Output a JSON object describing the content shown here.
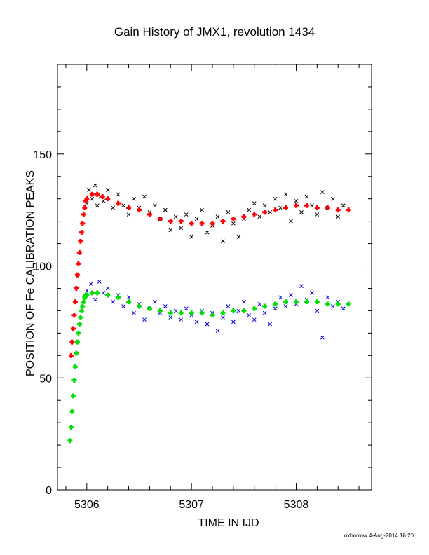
{
  "chart_data": {
    "type": "scatter",
    "title": "Gain History of JMX1, revolution 1434",
    "xlabel": "TIME IN IJD",
    "ylabel": "POSITION OF Fe CALIBRATION PEAKS",
    "xlim": [
      5305.72,
      5308.72
    ],
    "ylim": [
      0,
      190
    ],
    "xticks": [
      5306,
      5307,
      5308
    ],
    "yticks": [
      0,
      50,
      100,
      150
    ],
    "grid": false,
    "legend": "none",
    "series": [
      {
        "marker": "x",
        "color": "#000000",
        "points": [
          [
            5306.0,
            128
          ],
          [
            5306.02,
            134
          ],
          [
            5306.05,
            130
          ],
          [
            5306.08,
            136
          ],
          [
            5306.1,
            127
          ],
          [
            5306.13,
            131
          ],
          [
            5306.16,
            129
          ],
          [
            5306.2,
            134
          ],
          [
            5306.25,
            126
          ],
          [
            5306.3,
            132
          ],
          [
            5306.35,
            127
          ],
          [
            5306.4,
            123
          ],
          [
            5306.45,
            130
          ],
          [
            5306.5,
            126
          ],
          [
            5306.55,
            131
          ],
          [
            5306.6,
            124
          ],
          [
            5306.65,
            127
          ],
          [
            5306.7,
            121
          ],
          [
            5306.75,
            125
          ],
          [
            5306.8,
            116
          ],
          [
            5306.85,
            122
          ],
          [
            5306.9,
            117
          ],
          [
            5306.95,
            123
          ],
          [
            5307.0,
            113
          ],
          [
            5307.05,
            121
          ],
          [
            5307.1,
            125
          ],
          [
            5307.15,
            115
          ],
          [
            5307.2,
            118
          ],
          [
            5307.25,
            122
          ],
          [
            5307.3,
            111
          ],
          [
            5307.35,
            124
          ],
          [
            5307.4,
            119
          ],
          [
            5307.45,
            113
          ],
          [
            5307.5,
            121
          ],
          [
            5307.55,
            125
          ],
          [
            5307.6,
            128
          ],
          [
            5307.65,
            122
          ],
          [
            5307.7,
            127
          ],
          [
            5307.75,
            124
          ],
          [
            5307.8,
            130
          ],
          [
            5307.85,
            126
          ],
          [
            5307.9,
            132
          ],
          [
            5307.95,
            120
          ],
          [
            5308.0,
            129
          ],
          [
            5308.05,
            124
          ],
          [
            5308.1,
            131
          ],
          [
            5308.15,
            127
          ],
          [
            5308.2,
            123
          ],
          [
            5308.25,
            133
          ],
          [
            5308.3,
            126
          ],
          [
            5308.35,
            130
          ],
          [
            5308.4,
            122
          ],
          [
            5308.45,
            127
          ]
        ]
      },
      {
        "marker": "x",
        "color": "#0000e0",
        "points": [
          [
            5306.0,
            89
          ],
          [
            5306.04,
            92
          ],
          [
            5306.08,
            85
          ],
          [
            5306.12,
            93
          ],
          [
            5306.16,
            88
          ],
          [
            5306.2,
            90
          ],
          [
            5306.25,
            84
          ],
          [
            5306.3,
            87
          ],
          [
            5306.35,
            82
          ],
          [
            5306.4,
            86
          ],
          [
            5306.45,
            79
          ],
          [
            5306.5,
            83
          ],
          [
            5306.55,
            76
          ],
          [
            5306.6,
            81
          ],
          [
            5306.65,
            84
          ],
          [
            5306.7,
            79
          ],
          [
            5306.75,
            82
          ],
          [
            5306.8,
            77
          ],
          [
            5306.85,
            80
          ],
          [
            5306.9,
            76
          ],
          [
            5306.95,
            81
          ],
          [
            5307.0,
            78
          ],
          [
            5307.05,
            75
          ],
          [
            5307.1,
            80
          ],
          [
            5307.15,
            74
          ],
          [
            5307.2,
            79
          ],
          [
            5307.25,
            71
          ],
          [
            5307.3,
            77
          ],
          [
            5307.35,
            82
          ],
          [
            5307.4,
            75
          ],
          [
            5307.45,
            80
          ],
          [
            5307.5,
            84
          ],
          [
            5307.55,
            78
          ],
          [
            5307.6,
            76
          ],
          [
            5307.65,
            83
          ],
          [
            5307.7,
            79
          ],
          [
            5307.75,
            74
          ],
          [
            5307.8,
            81
          ],
          [
            5307.85,
            86
          ],
          [
            5307.9,
            82
          ],
          [
            5307.95,
            87
          ],
          [
            5308.0,
            83
          ],
          [
            5308.05,
            91
          ],
          [
            5308.1,
            85
          ],
          [
            5308.15,
            88
          ],
          [
            5308.2,
            80
          ],
          [
            5308.25,
            68
          ],
          [
            5308.3,
            86
          ],
          [
            5308.35,
            82
          ],
          [
            5308.4,
            84
          ],
          [
            5308.45,
            81
          ]
        ]
      },
      {
        "marker": "plus",
        "color": "#ff0000",
        "points": [
          [
            5305.85,
            60
          ],
          [
            5305.86,
            66
          ],
          [
            5305.87,
            72
          ],
          [
            5305.88,
            78
          ],
          [
            5305.89,
            84
          ],
          [
            5305.9,
            90
          ],
          [
            5305.91,
            96
          ],
          [
            5305.92,
            101
          ],
          [
            5305.93,
            106
          ],
          [
            5305.94,
            111
          ],
          [
            5305.95,
            115
          ],
          [
            5305.96,
            119
          ],
          [
            5305.97,
            123
          ],
          [
            5305.98,
            126
          ],
          [
            5305.99,
            129
          ],
          [
            5306.0,
            130
          ],
          [
            5306.05,
            132
          ],
          [
            5306.1,
            132
          ],
          [
            5306.15,
            131
          ],
          [
            5306.2,
            130
          ],
          [
            5306.3,
            128
          ],
          [
            5306.4,
            126
          ],
          [
            5306.5,
            125
          ],
          [
            5306.6,
            123
          ],
          [
            5306.7,
            121
          ],
          [
            5306.8,
            120
          ],
          [
            5306.9,
            120
          ],
          [
            5307.0,
            119
          ],
          [
            5307.1,
            119
          ],
          [
            5307.2,
            119
          ],
          [
            5307.3,
            120
          ],
          [
            5307.4,
            121
          ],
          [
            5307.5,
            122
          ],
          [
            5307.6,
            123
          ],
          [
            5307.7,
            124
          ],
          [
            5307.8,
            125
          ],
          [
            5307.9,
            126
          ],
          [
            5308.0,
            127
          ],
          [
            5308.1,
            127
          ],
          [
            5308.2,
            126
          ],
          [
            5308.3,
            126
          ],
          [
            5308.4,
            125
          ],
          [
            5308.5,
            125
          ]
        ]
      },
      {
        "marker": "plus",
        "color": "#00dd00",
        "points": [
          [
            5305.84,
            22
          ],
          [
            5305.85,
            28
          ],
          [
            5305.86,
            35
          ],
          [
            5305.87,
            42
          ],
          [
            5305.88,
            49
          ],
          [
            5305.89,
            55
          ],
          [
            5305.9,
            61
          ],
          [
            5305.91,
            66
          ],
          [
            5305.92,
            70
          ],
          [
            5305.93,
            74
          ],
          [
            5305.94,
            77
          ],
          [
            5305.95,
            80
          ],
          [
            5305.96,
            82
          ],
          [
            5305.97,
            84
          ],
          [
            5305.98,
            86
          ],
          [
            5305.99,
            87
          ],
          [
            5306.0,
            87
          ],
          [
            5306.05,
            88
          ],
          [
            5306.1,
            88
          ],
          [
            5306.2,
            87
          ],
          [
            5306.3,
            86
          ],
          [
            5306.4,
            84
          ],
          [
            5306.5,
            82
          ],
          [
            5306.6,
            81
          ],
          [
            5306.7,
            80
          ],
          [
            5306.8,
            79
          ],
          [
            5306.9,
            79
          ],
          [
            5307.0,
            79
          ],
          [
            5307.1,
            79
          ],
          [
            5307.2,
            78
          ],
          [
            5307.3,
            79
          ],
          [
            5307.4,
            80
          ],
          [
            5307.5,
            80
          ],
          [
            5307.6,
            81
          ],
          [
            5307.7,
            82
          ],
          [
            5307.8,
            83
          ],
          [
            5307.9,
            84
          ],
          [
            5308.0,
            84
          ],
          [
            5308.1,
            84
          ],
          [
            5308.2,
            84
          ],
          [
            5308.3,
            83
          ],
          [
            5308.4,
            83
          ],
          [
            5308.5,
            83
          ]
        ]
      }
    ]
  },
  "footer": "oxborrow  4-Aug-2014 16:20"
}
